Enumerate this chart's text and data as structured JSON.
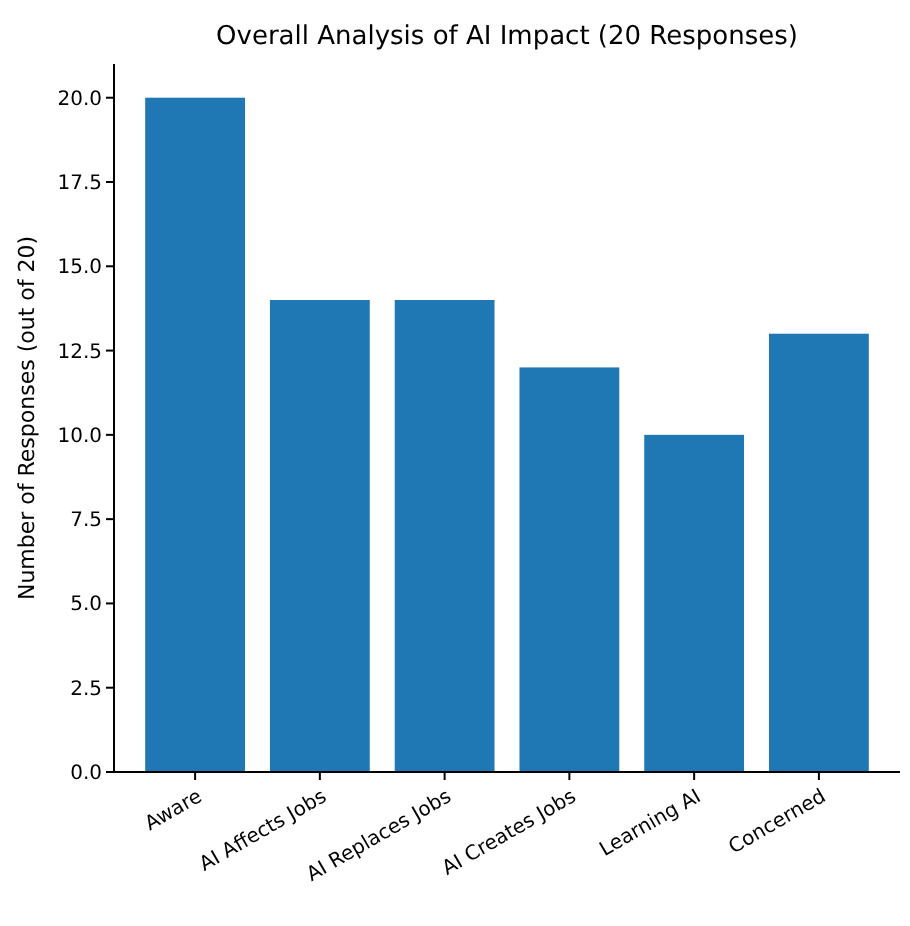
{
  "chart_data": {
    "type": "bar",
    "title": "Overall Analysis of AI Impact (20 Responses)",
    "ylabel": "Number of Responses (out of 20)",
    "categories": [
      "Aware",
      "AI Affects Jobs",
      "AI Replaces Jobs",
      "AI Creates Jobs",
      "Learning AI",
      "Concerned"
    ],
    "values": [
      20,
      14,
      14,
      12,
      10,
      13
    ],
    "color": "#1f77b4",
    "ylim": [
      0,
      21
    ],
    "yticks": [
      {
        "value": 0,
        "label": "0.0"
      },
      {
        "value": 2.5,
        "label": "2.5"
      },
      {
        "value": 5,
        "label": "5.0"
      },
      {
        "value": 7.5,
        "label": "7.5"
      },
      {
        "value": 10,
        "label": "10.0"
      },
      {
        "value": 12.5,
        "label": "12.5"
      },
      {
        "value": 15,
        "label": "15.0"
      },
      {
        "value": 17.5,
        "label": "17.5"
      },
      {
        "value": 20,
        "label": "20.0"
      }
    ]
  }
}
